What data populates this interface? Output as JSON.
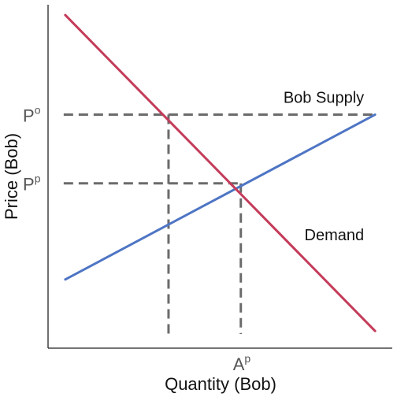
{
  "chart_data": {
    "type": "line",
    "title": "",
    "xlabel": "Quantity (Bob)",
    "ylabel": "Price (Bob)",
    "xlim": [
      0,
      10
    ],
    "ylim": [
      0,
      10
    ],
    "grid": false,
    "legend": "none",
    "series": [
      {
        "name": "Bob Supply",
        "color": "#4e75c4",
        "x": [
          0.5,
          9.5
        ],
        "y": [
          2.0,
          6.8
        ]
      },
      {
        "name": "Demand",
        "color": "#c43b5a",
        "x": [
          0.5,
          9.5
        ],
        "y": [
          9.7,
          0.5
        ]
      }
    ],
    "guides": {
      "horizontal": [
        {
          "y": 6.8,
          "x_from": 0.5,
          "x_to": 9.5
        },
        {
          "y": 4.8,
          "x_from": 0.5,
          "x_to": 5.6
        }
      ],
      "vertical": [
        {
          "x": 3.5,
          "y_from": 0,
          "y_to": 6.8
        },
        {
          "x": 5.6,
          "y_from": 0,
          "y_to": 4.8
        }
      ]
    },
    "y_ticks": [
      {
        "value": 6.8,
        "base": "P",
        "sup": "o"
      },
      {
        "value": 4.8,
        "base": "P",
        "sup": "p"
      }
    ],
    "x_ticks": [
      {
        "value": 5.6,
        "base": "A",
        "sup": "p"
      }
    ],
    "annotations": [
      {
        "text": "Bob Supply",
        "x": 9.5,
        "y": 7.3,
        "anchor": "end"
      },
      {
        "text": "Demand",
        "x": 9.5,
        "y": 3.3,
        "anchor": "end"
      }
    ]
  }
}
